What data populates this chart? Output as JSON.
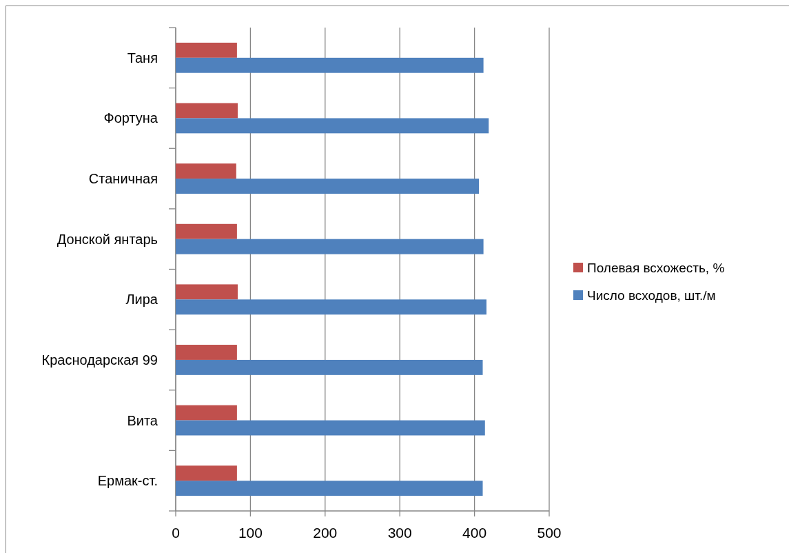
{
  "chart_data": {
    "type": "bar",
    "orientation": "horizontal",
    "categories": [
      "Таня",
      "Фортуна",
      "Станичная",
      "Донской янтарь",
      "Лира",
      "Краснодарская 99",
      "Вита",
      "Ермак-ст."
    ],
    "series": [
      {
        "name": "Полевая всхожесть, %",
        "color": "#c0504d",
        "values": [
          82,
          83,
          81,
          82,
          83,
          82,
          82,
          82
        ]
      },
      {
        "name": "Число всходов, шт./м",
        "color": "#4f81bd",
        "values": [
          412,
          419,
          406,
          412,
          416,
          411,
          414,
          411
        ]
      }
    ],
    "xlim": [
      0,
      500
    ],
    "xticks": [
      0,
      100,
      200,
      300,
      400,
      500
    ],
    "grid": "x",
    "legend": "right"
  }
}
